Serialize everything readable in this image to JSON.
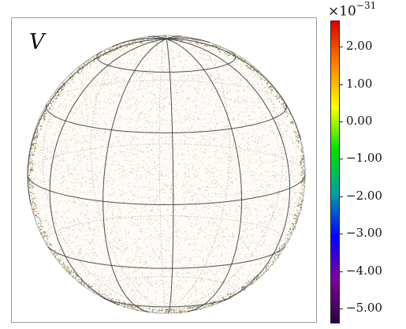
{
  "panel": {
    "label": "V"
  },
  "colorbar": {
    "multiplier_base": "×10",
    "multiplier_exponent": "−31",
    "range": [
      -5.4,
      2.7
    ],
    "ticks": [
      {
        "value": 2.0,
        "label": "2.00"
      },
      {
        "value": 1.0,
        "label": "1.00"
      },
      {
        "value": 0.0,
        "label": "0.00"
      },
      {
        "value": -1.0,
        "label": "−1.00"
      },
      {
        "value": -2.0,
        "label": "−2.00"
      },
      {
        "value": -3.0,
        "label": "−3.00"
      },
      {
        "value": -4.0,
        "label": "−4.00"
      },
      {
        "value": -5.0,
        "label": "−5.00"
      }
    ],
    "colormap": [
      "#dc0000",
      "#ff8000",
      "#ffff00",
      "#00e000",
      "#00a0a0",
      "#0000ff",
      "#8000a0",
      "#2a0040"
    ]
  },
  "sphere": {
    "wireframe_color": "#333333",
    "point_colors": [
      "#e8b9b0",
      "#f0e6a8",
      "#c8dca8",
      "#b8c8c0",
      "#d6c6c0"
    ]
  }
}
